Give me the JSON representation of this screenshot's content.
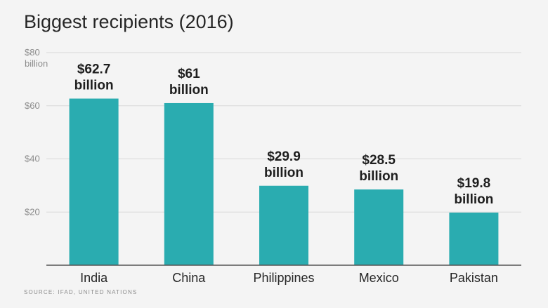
{
  "chart_data": {
    "type": "bar",
    "title": "Biggest recipients (2016)",
    "categories": [
      "India",
      "China",
      "Philippines",
      "Mexico",
      "Pakistan"
    ],
    "values": [
      62.7,
      61,
      29.9,
      28.5,
      19.8
    ],
    "data_labels": [
      [
        "$62.7",
        "billion"
      ],
      [
        "$61",
        "billion"
      ],
      [
        "$29.9",
        "billion"
      ],
      [
        "$28.5",
        "billion"
      ],
      [
        "$19.8",
        "billion"
      ]
    ],
    "y_ticks": [
      {
        "value": 20,
        "label": "$20"
      },
      {
        "value": 40,
        "label": "$40"
      },
      {
        "value": 60,
        "label": "$60"
      },
      {
        "value": 80,
        "label": "$80"
      }
    ],
    "y_top_unit": "billion",
    "ylim": [
      0,
      80
    ],
    "xlabel": "",
    "ylabel": "",
    "grid": true,
    "bar_color": "#2aacb0",
    "source": "SOURCE: IFAD, UNITED NATIONS"
  }
}
